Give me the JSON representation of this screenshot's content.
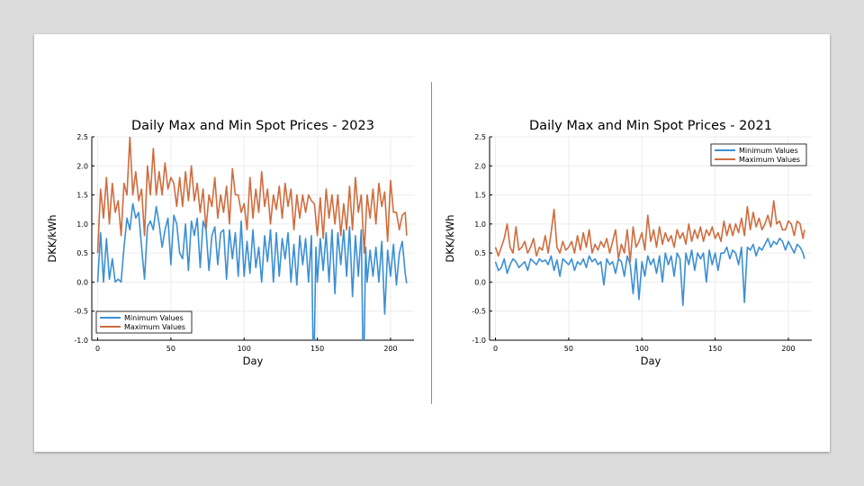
{
  "colors": {
    "min_series": "#3b8fd4",
    "max_series": "#cf6d3f",
    "background": "#dcdcdc",
    "slide": "#ffffff"
  },
  "chart_data": [
    {
      "type": "line",
      "title": "Daily Max and Min Spot Prices - 2023",
      "xlabel": "Day",
      "ylabel": "DKK/kWh",
      "xlim": [
        -4,
        216
      ],
      "ylim": [
        -1.0,
        2.5
      ],
      "xticks": [
        0,
        50,
        100,
        150,
        200
      ],
      "yticks": [
        -1.0,
        -0.5,
        0.0,
        0.5,
        1.0,
        1.5,
        2.0,
        2.5
      ],
      "legend_position": "bottom-left",
      "grid": true,
      "n_days": 212,
      "series": [
        {
          "name": "Minimum Values",
          "color": "#3b8fd4",
          "anchors_x": [
            0,
            2,
            4,
            6,
            8,
            10,
            12,
            14,
            16,
            18,
            20,
            22,
            24,
            26,
            28,
            30,
            32,
            34,
            36,
            38,
            40,
            42,
            44,
            46,
            48,
            50,
            52,
            54,
            56,
            58,
            60,
            62,
            64,
            66,
            68,
            70,
            72,
            74,
            76,
            78,
            80,
            82,
            84,
            86,
            88,
            90,
            92,
            94,
            96,
            98,
            100,
            102,
            104,
            106,
            108,
            110,
            112,
            114,
            116,
            118,
            120,
            122,
            124,
            126,
            128,
            130,
            132,
            134,
            136,
            138,
            140,
            142,
            144,
            146,
            147,
            148,
            149,
            150,
            152,
            154,
            156,
            158,
            160,
            162,
            164,
            166,
            168,
            170,
            172,
            174,
            176,
            178,
            180,
            181,
            182,
            183,
            184,
            186,
            188,
            190,
            192,
            194,
            196,
            198,
            200,
            202,
            204,
            206,
            208,
            210,
            211
          ],
          "anchors_y": [
            0.0,
            0.85,
            0.0,
            0.75,
            0.05,
            0.4,
            0.0,
            0.05,
            0.0,
            0.6,
            1.1,
            0.9,
            1.35,
            1.1,
            1.2,
            0.6,
            0.05,
            0.95,
            1.05,
            0.9,
            1.3,
            1.0,
            0.6,
            0.9,
            1.1,
            0.3,
            1.15,
            1.0,
            0.5,
            0.4,
            1.0,
            0.2,
            1.05,
            0.8,
            1.1,
            0.25,
            1.05,
            0.9,
            0.2,
            0.8,
            0.95,
            0.3,
            0.85,
            0.9,
            0.05,
            0.9,
            0.4,
            0.85,
            0.1,
            1.05,
            0.1,
            0.7,
            0.15,
            0.9,
            0.25,
            0.6,
            0.0,
            0.8,
            0.35,
            0.9,
            0.0,
            0.85,
            0.1,
            0.75,
            0.4,
            0.85,
            0.0,
            0.65,
            -0.05,
            0.8,
            0.3,
            0.75,
            0.0,
            0.8,
            -1.0,
            -1.0,
            0.6,
            0.0,
            0.75,
            0.2,
            0.85,
            0.0,
            0.9,
            -0.2,
            0.85,
            0.3,
            0.9,
            0.1,
            0.95,
            -0.25,
            0.8,
            0.1,
            0.9,
            -1.0,
            -1.0,
            0.6,
            0.0,
            0.55,
            0.1,
            0.6,
            0.0,
            0.7,
            -0.55,
            0.55,
            0.1,
            0.65,
            -0.05,
            0.5,
            0.7,
            0.15,
            -0.02
          ]
        },
        {
          "name": "Maximum Values",
          "color": "#cf6d3f",
          "anchors_x": [
            0,
            2,
            4,
            6,
            8,
            10,
            12,
            14,
            16,
            18,
            20,
            22,
            24,
            26,
            28,
            30,
            32,
            34,
            36,
            38,
            40,
            42,
            44,
            46,
            48,
            50,
            52,
            54,
            56,
            58,
            60,
            62,
            64,
            66,
            68,
            70,
            72,
            74,
            76,
            78,
            80,
            82,
            84,
            86,
            88,
            90,
            92,
            94,
            96,
            98,
            100,
            102,
            104,
            106,
            108,
            110,
            112,
            114,
            116,
            118,
            120,
            122,
            124,
            126,
            128,
            130,
            132,
            134,
            136,
            138,
            140,
            142,
            144,
            146,
            148,
            150,
            152,
            154,
            156,
            158,
            160,
            162,
            164,
            166,
            168,
            170,
            172,
            174,
            176,
            178,
            180,
            182,
            184,
            186,
            188,
            190,
            192,
            194,
            196,
            198,
            200,
            202,
            204,
            206,
            208,
            210,
            211
          ],
          "anchors_y": [
            0.5,
            1.6,
            1.1,
            1.8,
            1.0,
            1.7,
            1.2,
            1.4,
            0.8,
            1.7,
            1.5,
            2.5,
            1.5,
            1.9,
            1.4,
            1.6,
            0.8,
            2.0,
            1.5,
            2.3,
            1.5,
            1.9,
            1.5,
            2.05,
            1.6,
            1.8,
            1.7,
            1.3,
            1.8,
            1.3,
            1.9,
            1.4,
            2.0,
            1.4,
            1.7,
            1.2,
            1.6,
            0.9,
            1.5,
            1.3,
            1.8,
            1.1,
            1.5,
            1.2,
            1.65,
            1.0,
            1.95,
            1.5,
            1.5,
            1.2,
            1.35,
            0.9,
            1.8,
            1.1,
            1.6,
            1.2,
            1.9,
            1.3,
            1.6,
            1.0,
            1.5,
            1.25,
            1.65,
            1.1,
            1.7,
            1.3,
            1.6,
            0.9,
            1.5,
            1.1,
            1.5,
            1.2,
            1.5,
            1.4,
            1.35,
            0.8,
            1.45,
            0.75,
            1.6,
            1.1,
            1.5,
            1.0,
            1.5,
            0.8,
            1.35,
            0.9,
            1.65,
            0.9,
            1.8,
            1.2,
            1.5,
            0.5,
            1.5,
            1.1,
            1.6,
            1.0,
            1.7,
            1.3,
            1.55,
            0.7,
            1.75,
            1.2,
            1.2,
            0.9,
            1.15,
            1.2,
            0.8
          ]
        }
      ]
    },
    {
      "type": "line",
      "title": "Daily Max and Min Spot Prices - 2021",
      "xlabel": "Day",
      "ylabel": "DKK/kWh",
      "xlim": [
        -4,
        216
      ],
      "ylim": [
        -1.0,
        2.5
      ],
      "xticks": [
        0,
        50,
        100,
        150,
        200
      ],
      "yticks": [
        -1.0,
        -0.5,
        0.0,
        0.5,
        1.0,
        1.5,
        2.0,
        2.5
      ],
      "legend_position": "top-right",
      "grid": true,
      "n_days": 212,
      "series": [
        {
          "name": "Minimum Values",
          "color": "#3b8fd4",
          "anchors_x": [
            0,
            2,
            4,
            6,
            8,
            10,
            12,
            14,
            16,
            18,
            20,
            22,
            24,
            26,
            28,
            30,
            32,
            34,
            36,
            38,
            40,
            42,
            44,
            46,
            48,
            50,
            52,
            54,
            56,
            58,
            60,
            62,
            64,
            66,
            68,
            70,
            72,
            74,
            76,
            78,
            80,
            82,
            84,
            86,
            88,
            90,
            92,
            94,
            96,
            98,
            100,
            102,
            104,
            106,
            108,
            110,
            112,
            114,
            116,
            118,
            120,
            122,
            124,
            126,
            128,
            130,
            132,
            134,
            136,
            138,
            140,
            142,
            144,
            146,
            148,
            150,
            152,
            154,
            156,
            158,
            160,
            162,
            164,
            166,
            168,
            170,
            172,
            174,
            176,
            178,
            180,
            182,
            184,
            186,
            188,
            190,
            192,
            194,
            196,
            198,
            200,
            202,
            204,
            206,
            208,
            210,
            211
          ],
          "anchors_y": [
            0.35,
            0.2,
            0.25,
            0.4,
            0.15,
            0.3,
            0.4,
            0.35,
            0.25,
            0.3,
            0.35,
            0.2,
            0.4,
            0.35,
            0.3,
            0.4,
            0.35,
            0.38,
            0.3,
            0.45,
            0.2,
            0.38,
            0.1,
            0.4,
            0.35,
            0.3,
            0.4,
            0.2,
            0.35,
            0.3,
            0.4,
            0.25,
            0.45,
            0.35,
            0.4,
            0.3,
            0.35,
            -0.05,
            0.4,
            0.3,
            0.35,
            0.15,
            0.4,
            0.35,
            0.1,
            0.45,
            0.3,
            -0.2,
            0.4,
            -0.3,
            0.35,
            0.1,
            0.45,
            0.3,
            0.4,
            0.15,
            0.45,
            0.0,
            0.5,
            0.3,
            0.45,
            0.1,
            0.5,
            0.4,
            -0.4,
            0.5,
            0.3,
            0.55,
            0.2,
            0.5,
            0.4,
            0.5,
            0.0,
            0.55,
            0.3,
            0.5,
            0.2,
            0.5,
            0.5,
            0.6,
            0.4,
            0.55,
            0.5,
            0.3,
            0.6,
            -0.35,
            0.6,
            0.55,
            0.65,
            0.45,
            0.6,
            0.55,
            0.65,
            0.75,
            0.6,
            0.7,
            0.65,
            0.75,
            0.7,
            0.55,
            0.7,
            0.6,
            0.5,
            0.65,
            0.6,
            0.5,
            0.4
          ]
        },
        {
          "name": "Maximum Values",
          "color": "#cf6d3f",
          "anchors_x": [
            0,
            2,
            4,
            6,
            8,
            10,
            12,
            14,
            16,
            18,
            20,
            22,
            24,
            26,
            28,
            30,
            32,
            34,
            36,
            38,
            40,
            42,
            44,
            46,
            48,
            50,
            52,
            54,
            56,
            58,
            60,
            62,
            64,
            66,
            68,
            70,
            72,
            74,
            76,
            78,
            80,
            82,
            84,
            86,
            88,
            90,
            92,
            94,
            96,
            98,
            100,
            102,
            104,
            106,
            108,
            110,
            112,
            114,
            116,
            118,
            120,
            122,
            124,
            126,
            128,
            130,
            132,
            134,
            136,
            138,
            140,
            142,
            144,
            146,
            148,
            150,
            152,
            154,
            156,
            158,
            160,
            162,
            164,
            166,
            168,
            170,
            172,
            174,
            176,
            178,
            180,
            182,
            184,
            186,
            188,
            190,
            192,
            194,
            196,
            198,
            200,
            202,
            204,
            206,
            208,
            210,
            211
          ],
          "anchors_y": [
            0.6,
            0.45,
            0.6,
            0.75,
            1.0,
            0.6,
            0.5,
            0.95,
            0.55,
            0.6,
            0.7,
            0.5,
            0.6,
            0.75,
            0.45,
            0.6,
            0.55,
            0.8,
            0.5,
            0.85,
            1.25,
            0.6,
            0.5,
            0.7,
            0.55,
            0.6,
            0.7,
            0.5,
            0.8,
            0.55,
            0.85,
            0.6,
            0.9,
            0.5,
            0.65,
            0.55,
            0.7,
            0.6,
            0.75,
            0.5,
            0.7,
            0.9,
            0.4,
            0.65,
            0.5,
            0.9,
            0.35,
            0.95,
            0.6,
            0.7,
            0.85,
            0.55,
            1.15,
            0.7,
            0.9,
            0.6,
            0.95,
            0.65,
            0.85,
            0.7,
            0.8,
            0.6,
            0.9,
            0.75,
            0.85,
            0.65,
            1.0,
            0.7,
            0.9,
            0.75,
            0.95,
            0.7,
            0.9,
            0.8,
            0.95,
            0.75,
            0.85,
            0.7,
            1.05,
            0.8,
            1.0,
            0.8,
            1.0,
            0.85,
            1.1,
            0.8,
            1.3,
            0.9,
            1.2,
            0.95,
            1.1,
            0.9,
            1.0,
            1.15,
            0.95,
            1.4,
            1.0,
            1.05,
            0.9,
            0.9,
            1.05,
            1.0,
            0.8,
            1.05,
            1.0,
            0.75,
            0.9
          ]
        }
      ]
    }
  ]
}
